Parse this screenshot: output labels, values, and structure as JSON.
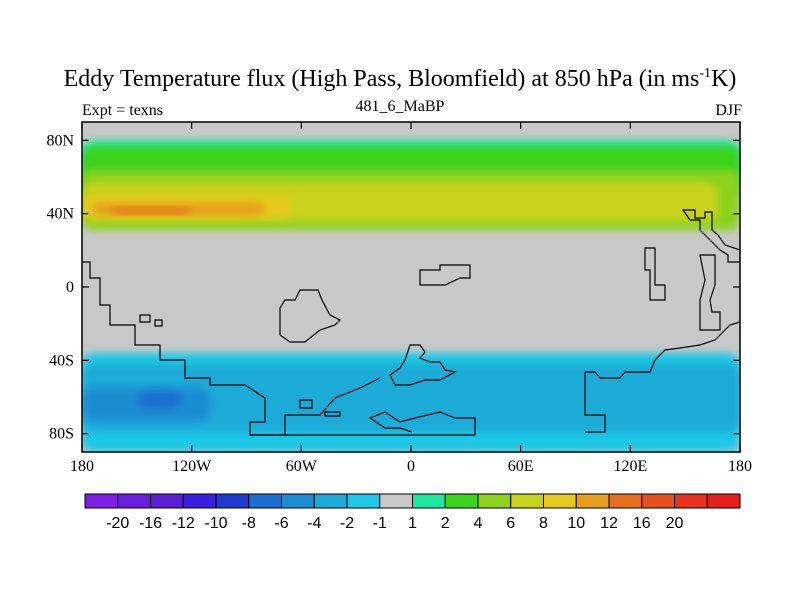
{
  "chart_data": {
    "type": "heatmap",
    "title_main": "Eddy Temperature flux (High Pass, Bloomfield) at 850 hPa (in ms",
    "title_sup": "-1",
    "title_end": "K)",
    "subtitle": "481_6_MaBP",
    "left_label": "Expt = texns",
    "right_label": "DJF",
    "x_range": [
      -180,
      180
    ],
    "y_range": [
      -90,
      90
    ],
    "x_ticks": [
      {
        "value": -180,
        "label": "180"
      },
      {
        "value": -120,
        "label": "120W"
      },
      {
        "value": -60,
        "label": "60W"
      },
      {
        "value": 0,
        "label": "0"
      },
      {
        "value": 60,
        "label": "60E"
      },
      {
        "value": 120,
        "label": "120E"
      },
      {
        "value": 180,
        "label": "180"
      }
    ],
    "y_ticks": [
      {
        "value": 80,
        "label": "80N"
      },
      {
        "value": 40,
        "label": "40N"
      },
      {
        "value": 0,
        "label": "0"
      },
      {
        "value": -40,
        "label": "40S"
      },
      {
        "value": -80,
        "label": "80S"
      }
    ],
    "colorbar": {
      "colors": [
        "#7e1ee6",
        "#6c1ee0",
        "#5a1ed6",
        "#3c1ee0",
        "#1e3cd2",
        "#1e6ed2",
        "#1e8cd2",
        "#1eaad6",
        "#1ec8e6",
        "#c8c8c8",
        "#1ee6a0",
        "#3cd21e",
        "#8cd21e",
        "#c8d21e",
        "#e6c81e",
        "#e6a01e",
        "#e66e1e",
        "#e6501e",
        "#e6321e",
        "#e61e1e"
      ],
      "labels": [
        "-20",
        "-16",
        "-12",
        "-10",
        "-8",
        "-6",
        "-4",
        "-2",
        "-1",
        "1",
        "2",
        "4",
        "6",
        "8",
        "10",
        "12",
        "16",
        "20"
      ]
    },
    "fields": [
      {
        "level": "1",
        "color": "#1ee6a0",
        "lon": [
          -180,
          180
        ],
        "lat": [
          49,
          80
        ]
      },
      {
        "level": "2",
        "color": "#3cd21e",
        "lon": [
          -180,
          180
        ],
        "lat": [
          51,
          77
        ]
      },
      {
        "level": "4",
        "color": "#8cd21e",
        "lon": [
          -180,
          180
        ],
        "lat": [
          31,
          64
        ]
      },
      {
        "level": "6",
        "color": "#c8d21e",
        "lon": [
          -180,
          168
        ],
        "lat": [
          36,
          57
        ]
      },
      {
        "level": "8",
        "color": "#e6c81e",
        "lon": [
          -180,
          -65
        ],
        "lat": [
          38,
          50
        ]
      },
      {
        "level": "10",
        "color": "#e6a01e",
        "lon": [
          -175,
          -80
        ],
        "lat": [
          39,
          46
        ]
      },
      {
        "level": "12",
        "color": "#e66e1e",
        "lon": [
          -164,
          -120
        ],
        "lat": [
          40,
          43
        ]
      },
      {
        "level": "-1",
        "color": "#1ec8e6",
        "lon": [
          -180,
          180
        ],
        "lat": [
          -90,
          -36
        ]
      },
      {
        "level": "-2",
        "color": "#1eaad6",
        "lon": [
          -180,
          180
        ],
        "lat": [
          -79,
          -42
        ]
      },
      {
        "level": "-4",
        "color": "#1e8cd2",
        "lon": [
          -180,
          -110
        ],
        "lat": [
          -73,
          -55
        ]
      },
      {
        "level": "-6",
        "color": "#1e6ed2",
        "lon": [
          -150,
          -125
        ],
        "lat": [
          -66,
          -57
        ]
      }
    ]
  }
}
